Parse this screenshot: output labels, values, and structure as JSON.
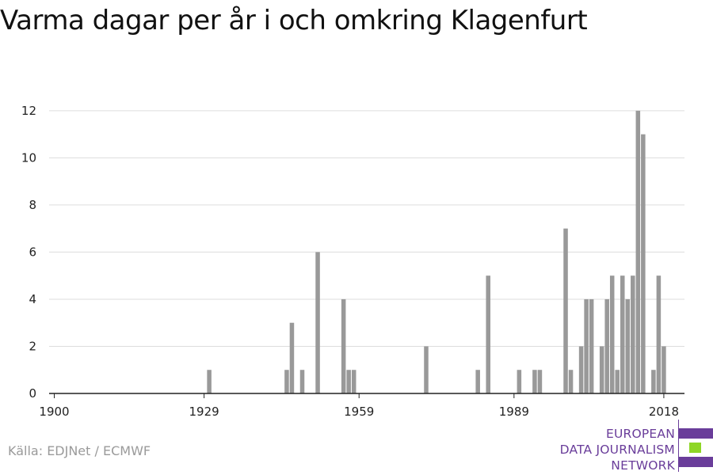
{
  "title": "Varma dagar per år i och omkring Klagenfurt",
  "source": "Källa: EDJNet / ECMWF",
  "logo": {
    "lines": [
      "EUROPEAN",
      "DATA JOURNALISM",
      "NETWORK"
    ],
    "colors": {
      "purple": "#6a3d9a",
      "green": "#8ed626"
    }
  },
  "colors": {
    "bar": "#999999",
    "grid": "#dddddd",
    "axis": "#222222"
  },
  "chart_data": {
    "type": "bar",
    "title": "Varma dagar per år i och omkring Klagenfurt",
    "xlabel": "",
    "ylabel": "",
    "xlim": [
      1899,
      2022
    ],
    "ylim": [
      0,
      12.6
    ],
    "yticks": [
      0,
      2,
      4,
      6,
      8,
      10,
      12
    ],
    "xticks": [
      1900,
      1929,
      1959,
      1989,
      2018
    ],
    "grid": true,
    "x": [
      1930,
      1945,
      1946,
      1948,
      1951,
      1956,
      1957,
      1958,
      1972,
      1982,
      1984,
      1990,
      1993,
      1994,
      1999,
      2000,
      2002,
      2003,
      2004,
      2006,
      2007,
      2008,
      2009,
      2010,
      2011,
      2012,
      2013,
      2014,
      2016,
      2017,
      2018
    ],
    "values": [
      1,
      1,
      3,
      1,
      6,
      4,
      1,
      1,
      2,
      1,
      5,
      1,
      1,
      1,
      7,
      1,
      2,
      4,
      4,
      2,
      4,
      5,
      1,
      5,
      4,
      5,
      12,
      11,
      1,
      5,
      2
    ]
  }
}
